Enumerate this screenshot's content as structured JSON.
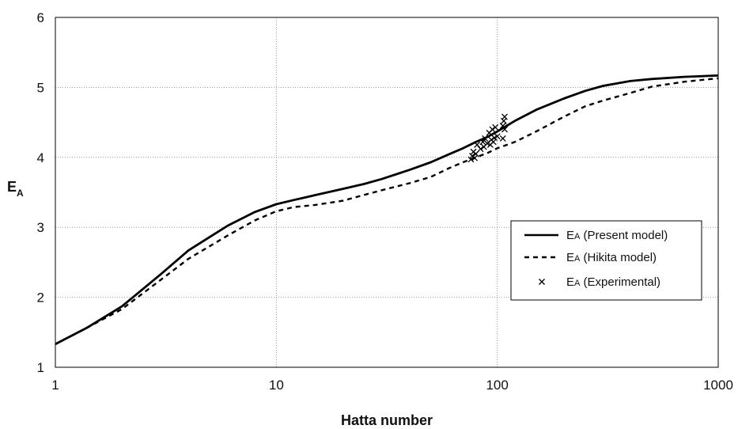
{
  "chart_data": {
    "type": "line",
    "xscale": "log",
    "xlim": [
      1,
      1000
    ],
    "ylim": [
      1,
      6
    ],
    "xlabel": "Hatta number",
    "ylabel": {
      "main": "E",
      "sub": "A"
    },
    "xticks": [
      "1",
      "10",
      "100",
      "1000"
    ],
    "yticks": [
      "1",
      "2",
      "3",
      "4",
      "5",
      "6"
    ],
    "grid": {
      "vertical": true,
      "horizontal": true,
      "style": "dotted"
    },
    "legend": {
      "position": "right",
      "entries": [
        {
          "main": "E",
          "sub": "A",
          "rest": " (Present model)"
        },
        {
          "main": "E",
          "sub": "A",
          "rest": " (Hikita model)"
        },
        {
          "main": "E",
          "sub": "A",
          "rest": " (Experimental)"
        }
      ]
    },
    "series": [
      {
        "name": "EA (Present model)",
        "style": "solid",
        "color": "#000000",
        "x": [
          1,
          1.4,
          2,
          3,
          4,
          6,
          8,
          10,
          12,
          15,
          20,
          25,
          30,
          40,
          50,
          60,
          70,
          80,
          90,
          100,
          120,
          150,
          200,
          250,
          300,
          400,
          500,
          700,
          1000
        ],
        "y": [
          1.33,
          1.57,
          1.87,
          2.33,
          2.67,
          3.02,
          3.22,
          3.33,
          3.39,
          3.46,
          3.55,
          3.62,
          3.69,
          3.82,
          3.93,
          4.04,
          4.13,
          4.22,
          4.29,
          4.37,
          4.52,
          4.68,
          4.84,
          4.95,
          5.02,
          5.09,
          5.12,
          5.15,
          5.17
        ]
      },
      {
        "name": "EA (Hikita model)",
        "style": "dashed",
        "color": "#000000",
        "x": [
          1,
          1.4,
          2,
          3,
          4,
          6,
          8,
          10,
          12,
          15,
          20,
          30,
          40,
          50,
          60,
          70,
          80,
          90,
          100,
          120,
          150,
          200,
          250,
          300,
          400,
          500,
          700,
          1000
        ],
        "y": [
          1.33,
          1.57,
          1.83,
          2.25,
          2.55,
          2.88,
          3.1,
          3.23,
          3.29,
          3.32,
          3.38,
          3.53,
          3.63,
          3.72,
          3.84,
          3.93,
          4.0,
          4.06,
          4.13,
          4.22,
          4.37,
          4.58,
          4.73,
          4.81,
          4.92,
          5.01,
          5.08,
          5.13
        ]
      }
    ],
    "scatter": {
      "name": "EA (Experimental)",
      "marker": "x",
      "color": "#000000",
      "points": [
        [
          76,
          3.97
        ],
        [
          77,
          4.02
        ],
        [
          78,
          4.08
        ],
        [
          79,
          3.99
        ],
        [
          80,
          4.05
        ],
        [
          81,
          4.18
        ],
        [
          84,
          4.12
        ],
        [
          86,
          4.22
        ],
        [
          87,
          4.15
        ],
        [
          88,
          4.27
        ],
        [
          90,
          4.2
        ],
        [
          92,
          4.35
        ],
        [
          93,
          4.18
        ],
        [
          94,
          4.25
        ],
        [
          95,
          4.4
        ],
        [
          96,
          4.22
        ],
        [
          97,
          4.28
        ],
        [
          98,
          4.43
        ],
        [
          100,
          4.3
        ],
        [
          106,
          4.27
        ],
        [
          106,
          4.45
        ],
        [
          107,
          4.52
        ],
        [
          108,
          4.58
        ],
        [
          108,
          4.4
        ]
      ]
    }
  }
}
